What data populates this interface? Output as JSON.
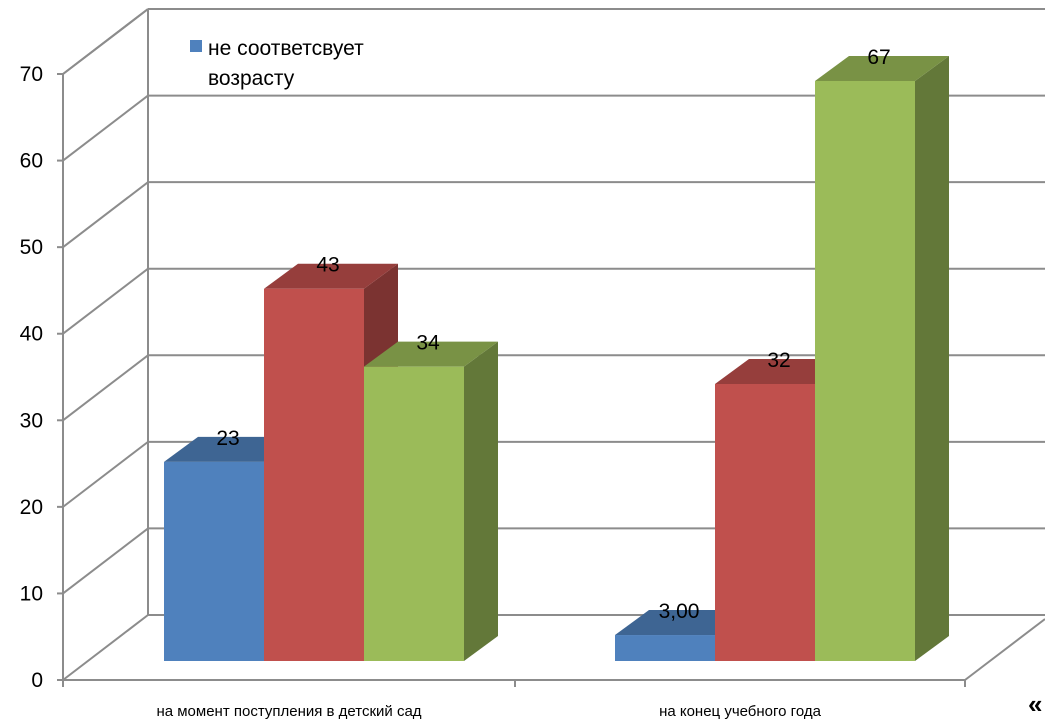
{
  "chart_data": {
    "type": "bar",
    "categories": [
      "на момент поступления в детский сад",
      "на конец учебного года"
    ],
    "series": [
      {
        "name": "не соответсвует возрасту",
        "values": [
          23,
          3
        ],
        "labels": [
          "23",
          "3,00"
        ],
        "color": "#4F81BD"
      },
      {
        "name": "",
        "values": [
          43,
          32
        ],
        "labels": [
          "43",
          "32"
        ],
        "color": "#C0504D"
      },
      {
        "name": "",
        "values": [
          34,
          67
        ],
        "labels": [
          "34",
          "67"
        ],
        "color": "#9BBB59"
      }
    ],
    "y_ticks": [
      "0",
      "10",
      "20",
      "30",
      "40",
      "50",
      "60",
      "70"
    ],
    "ylim": [
      0,
      70
    ],
    "grid": true,
    "legend": "top-left",
    "style": "3d-clustered-column"
  },
  "corner_mark": "«"
}
